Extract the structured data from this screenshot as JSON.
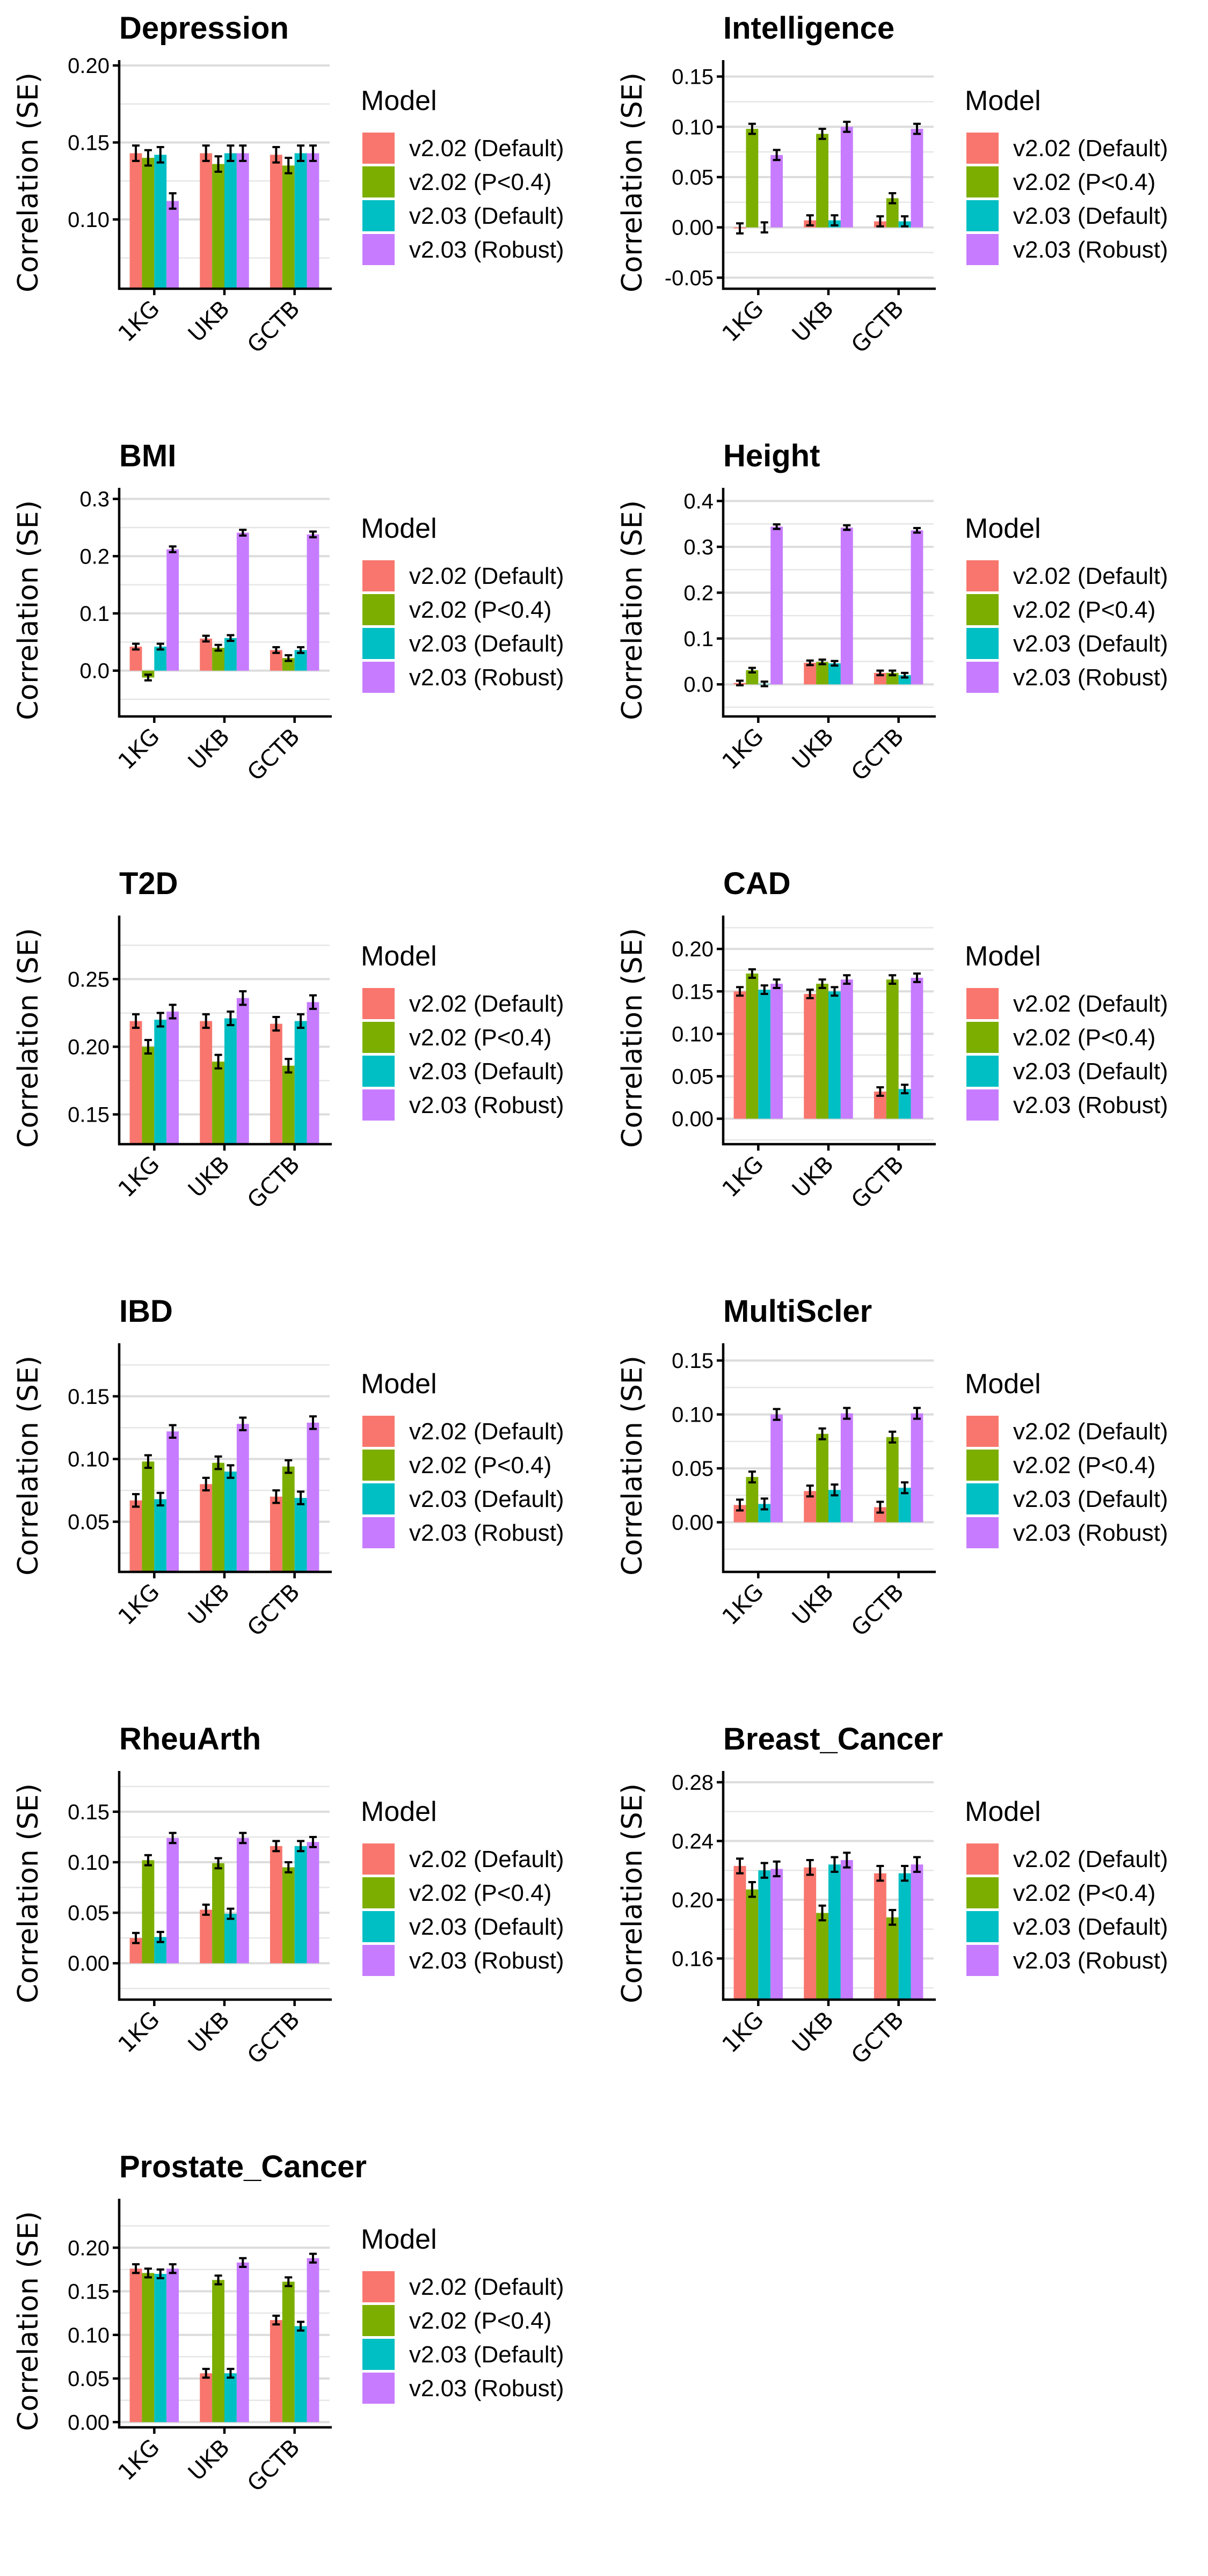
{
  "figure": {
    "legend_title": "Model",
    "ylabel": "Correlation (SE)"
  },
  "chart_data": [
    {
      "type": "bar",
      "title": "Depression",
      "xlabel": "",
      "ylabel": "Correlation (SE)",
      "categories": [
        "1KG",
        "UKB",
        "GCTB"
      ],
      "ylim": [
        0.055,
        0.2
      ],
      "yticks": [
        0.1,
        0.15,
        0.2
      ],
      "ytick_labels": [
        "0.10",
        "0.15",
        "0.20"
      ],
      "minor_ticks": [
        0.075,
        0.125,
        0.175
      ],
      "grid": true,
      "legend_position": "right",
      "series": [
        {
          "name": "v2.02 (Default)",
          "color": "#F8766D",
          "values": [
            0.143,
            0.143,
            0.142
          ],
          "se": [
            0.005,
            0.005,
            0.005
          ]
        },
        {
          "name": "v2.02 (P<0.4)",
          "color": "#7CAE00",
          "values": [
            0.14,
            0.136,
            0.135
          ],
          "se": [
            0.005,
            0.005,
            0.005
          ]
        },
        {
          "name": "v2.03 (Default)",
          "color": "#00BFC4",
          "values": [
            0.142,
            0.143,
            0.143
          ],
          "se": [
            0.005,
            0.005,
            0.005
          ]
        },
        {
          "name": "v2.03 (Robust)",
          "color": "#C77CFF",
          "values": [
            0.112,
            0.143,
            0.143
          ],
          "se": [
            0.005,
            0.005,
            0.005
          ]
        }
      ]
    },
    {
      "type": "bar",
      "title": "Intelligence",
      "xlabel": "",
      "ylabel": "Correlation (SE)",
      "categories": [
        "1KG",
        "UKB",
        "GCTB"
      ],
      "ylim": [
        -0.061,
        0.161
      ],
      "yticks": [
        -0.05,
        0.0,
        0.05,
        0.1,
        0.15
      ],
      "ytick_labels": [
        "-0.05",
        "0.00",
        "0.05",
        "0.10",
        "0.15"
      ],
      "minor_ticks": [
        -0.025,
        0.025,
        0.075,
        0.125
      ],
      "grid": true,
      "legend_position": "right",
      "series": [
        {
          "name": "v2.02 (Default)",
          "color": "#F8766D",
          "values": [
            -0.001,
            0.007,
            0.006
          ],
          "se": [
            0.005,
            0.005,
            0.005
          ]
        },
        {
          "name": "v2.02 (P<0.4)",
          "color": "#7CAE00",
          "values": [
            0.098,
            0.093,
            0.029
          ],
          "se": [
            0.005,
            0.005,
            0.005
          ]
        },
        {
          "name": "v2.03 (Default)",
          "color": "#00BFC4",
          "values": [
            0.0,
            0.007,
            0.006
          ],
          "se": [
            0.005,
            0.005,
            0.005
          ]
        },
        {
          "name": "v2.03 (Robust)",
          "color": "#C77CFF",
          "values": [
            0.072,
            0.1,
            0.098
          ],
          "se": [
            0.005,
            0.005,
            0.005
          ]
        }
      ]
    },
    {
      "type": "bar",
      "title": "BMI",
      "xlabel": "",
      "ylabel": "Correlation (SE)",
      "categories": [
        "1KG",
        "UKB",
        "GCTB"
      ],
      "ylim": [
        -0.08,
        0.31
      ],
      "yticks": [
        0.0,
        0.1,
        0.2,
        0.3
      ],
      "ytick_labels": [
        "0.0",
        "0.1",
        "0.2",
        "0.3"
      ],
      "minor_ticks": [
        -0.05,
        0.05,
        0.15,
        0.25
      ],
      "grid": true,
      "legend_position": "right",
      "series": [
        {
          "name": "v2.02 (Default)",
          "color": "#F8766D",
          "values": [
            0.042,
            0.056,
            0.036
          ],
          "se": [
            0.005,
            0.005,
            0.005
          ]
        },
        {
          "name": "v2.02 (P<0.4)",
          "color": "#7CAE00",
          "values": [
            -0.012,
            0.04,
            0.022
          ],
          "se": [
            0.005,
            0.005,
            0.005
          ]
        },
        {
          "name": "v2.03 (Default)",
          "color": "#00BFC4",
          "values": [
            0.042,
            0.057,
            0.036
          ],
          "se": [
            0.005,
            0.005,
            0.005
          ]
        },
        {
          "name": "v2.03 (Robust)",
          "color": "#C77CFF",
          "values": [
            0.212,
            0.241,
            0.238
          ],
          "se": [
            0.005,
            0.005,
            0.005
          ]
        }
      ]
    },
    {
      "type": "bar",
      "title": "Height",
      "xlabel": "",
      "ylabel": "Correlation (SE)",
      "categories": [
        "1KG",
        "UKB",
        "GCTB"
      ],
      "ylim": [
        -0.07,
        0.417
      ],
      "yticks": [
        0.0,
        0.1,
        0.2,
        0.3,
        0.4
      ],
      "ytick_labels": [
        "0.0",
        "0.1",
        "0.2",
        "0.3",
        "0.4"
      ],
      "minor_ticks": [
        -0.05,
        0.05,
        0.15,
        0.25,
        0.35
      ],
      "grid": true,
      "legend_position": "right",
      "series": [
        {
          "name": "v2.02 (Default)",
          "color": "#F8766D",
          "values": [
            0.003,
            0.047,
            0.025
          ],
          "se": [
            0.005,
            0.005,
            0.005
          ]
        },
        {
          "name": "v2.02 (P<0.4)",
          "color": "#7CAE00",
          "values": [
            0.031,
            0.049,
            0.025
          ],
          "se": [
            0.005,
            0.005,
            0.005
          ]
        },
        {
          "name": "v2.03 (Default)",
          "color": "#00BFC4",
          "values": [
            0.001,
            0.046,
            0.02
          ],
          "se": [
            0.005,
            0.005,
            0.005
          ]
        },
        {
          "name": "v2.03 (Robust)",
          "color": "#C77CFF",
          "values": [
            0.344,
            0.342,
            0.336
          ],
          "se": [
            0.005,
            0.005,
            0.005
          ]
        }
      ]
    },
    {
      "type": "bar",
      "title": "T2D",
      "xlabel": "",
      "ylabel": "Correlation (SE)",
      "categories": [
        "1KG",
        "UKB",
        "GCTB"
      ],
      "ylim": [
        0.128,
        0.293
      ],
      "yticks": [
        0.15,
        0.2,
        0.25
      ],
      "ytick_labels": [
        "0.15",
        "0.20",
        "0.25"
      ],
      "minor_ticks": [
        0.175,
        0.225,
        0.275
      ],
      "grid": true,
      "legend_position": "right",
      "series": [
        {
          "name": "v2.02 (Default)",
          "color": "#F8766D",
          "values": [
            0.219,
            0.219,
            0.217
          ],
          "se": [
            0.005,
            0.005,
            0.005
          ]
        },
        {
          "name": "v2.02 (P<0.4)",
          "color": "#7CAE00",
          "values": [
            0.2,
            0.189,
            0.186
          ],
          "se": [
            0.005,
            0.005,
            0.005
          ]
        },
        {
          "name": "v2.03 (Default)",
          "color": "#00BFC4",
          "values": [
            0.22,
            0.221,
            0.219
          ],
          "se": [
            0.005,
            0.005,
            0.005
          ]
        },
        {
          "name": "v2.03 (Robust)",
          "color": "#C77CFF",
          "values": [
            0.226,
            0.236,
            0.233
          ],
          "se": [
            0.005,
            0.005,
            0.005
          ]
        }
      ]
    },
    {
      "type": "bar",
      "title": "CAD",
      "xlabel": "",
      "ylabel": "Correlation (SE)",
      "categories": [
        "1KG",
        "UKB",
        "GCTB"
      ],
      "ylim": [
        -0.03,
        0.233
      ],
      "yticks": [
        0.0,
        0.05,
        0.1,
        0.15,
        0.2
      ],
      "ytick_labels": [
        "0.00",
        "0.05",
        "0.10",
        "0.15",
        "0.20"
      ],
      "minor_ticks": [
        -0.025,
        0.025,
        0.075,
        0.125,
        0.175,
        0.225
      ],
      "grid": true,
      "legend_position": "right",
      "series": [
        {
          "name": "v2.02 (Default)",
          "color": "#F8766D",
          "values": [
            0.15,
            0.147,
            0.032
          ],
          "se": [
            0.005,
            0.005,
            0.005
          ]
        },
        {
          "name": "v2.02 (P<0.4)",
          "color": "#7CAE00",
          "values": [
            0.171,
            0.159,
            0.164
          ],
          "se": [
            0.005,
            0.005,
            0.005
          ]
        },
        {
          "name": "v2.03 (Default)",
          "color": "#00BFC4",
          "values": [
            0.152,
            0.15,
            0.035
          ],
          "se": [
            0.005,
            0.005,
            0.005
          ]
        },
        {
          "name": "v2.03 (Robust)",
          "color": "#C77CFF",
          "values": [
            0.159,
            0.164,
            0.166
          ],
          "se": [
            0.005,
            0.005,
            0.005
          ]
        }
      ]
    },
    {
      "type": "bar",
      "title": "IBD",
      "xlabel": "",
      "ylabel": "Correlation (SE)",
      "categories": [
        "1KG",
        "UKB",
        "GCTB"
      ],
      "ylim": [
        0.01,
        0.188
      ],
      "yticks": [
        0.05,
        0.1,
        0.15
      ],
      "ytick_labels": [
        "0.05",
        "0.10",
        "0.15"
      ],
      "minor_ticks": [
        0.025,
        0.075,
        0.125,
        0.175
      ],
      "grid": true,
      "legend_position": "right",
      "series": [
        {
          "name": "v2.02 (Default)",
          "color": "#F8766D",
          "values": [
            0.067,
            0.08,
            0.07
          ],
          "se": [
            0.005,
            0.005,
            0.005
          ]
        },
        {
          "name": "v2.02 (P<0.4)",
          "color": "#7CAE00",
          "values": [
            0.098,
            0.097,
            0.094
          ],
          "se": [
            0.005,
            0.005,
            0.005
          ]
        },
        {
          "name": "v2.03 (Default)",
          "color": "#00BFC4",
          "values": [
            0.068,
            0.09,
            0.069
          ],
          "se": [
            0.005,
            0.005,
            0.005
          ]
        },
        {
          "name": "v2.03 (Robust)",
          "color": "#C77CFF",
          "values": [
            0.122,
            0.128,
            0.129
          ],
          "se": [
            0.005,
            0.005,
            0.005
          ]
        }
      ]
    },
    {
      "type": "bar",
      "title": "MultiScler",
      "xlabel": "",
      "ylabel": "Correlation (SE)",
      "categories": [
        "1KG",
        "UKB",
        "GCTB"
      ],
      "ylim": [
        -0.046,
        0.161
      ],
      "yticks": [
        0.0,
        0.05,
        0.1,
        0.15
      ],
      "ytick_labels": [
        "0.00",
        "0.05",
        "0.10",
        "0.15"
      ],
      "minor_ticks": [
        -0.025,
        0.025,
        0.075,
        0.125
      ],
      "grid": true,
      "legend_position": "right",
      "series": [
        {
          "name": "v2.02 (Default)",
          "color": "#F8766D",
          "values": [
            0.016,
            0.029,
            0.014
          ],
          "se": [
            0.005,
            0.005,
            0.005
          ]
        },
        {
          "name": "v2.02 (P<0.4)",
          "color": "#7CAE00",
          "values": [
            0.042,
            0.082,
            0.079
          ],
          "se": [
            0.005,
            0.005,
            0.005
          ]
        },
        {
          "name": "v2.03 (Default)",
          "color": "#00BFC4",
          "values": [
            0.017,
            0.03,
            0.032
          ],
          "se": [
            0.005,
            0.005,
            0.005
          ]
        },
        {
          "name": "v2.03 (Robust)",
          "color": "#C77CFF",
          "values": [
            0.1,
            0.101,
            0.101
          ],
          "se": [
            0.005,
            0.005,
            0.005
          ]
        }
      ]
    },
    {
      "type": "bar",
      "title": "RheuArth",
      "xlabel": "",
      "ylabel": "Correlation (SE)",
      "categories": [
        "1KG",
        "UKB",
        "GCTB"
      ],
      "ylim": [
        -0.036,
        0.185
      ],
      "yticks": [
        0.0,
        0.05,
        0.1,
        0.15
      ],
      "ytick_labels": [
        "0.00",
        "0.05",
        "0.10",
        "0.15"
      ],
      "minor_ticks": [
        -0.025,
        0.025,
        0.075,
        0.125,
        0.175
      ],
      "grid": true,
      "legend_position": "right",
      "series": [
        {
          "name": "v2.02 (Default)",
          "color": "#F8766D",
          "values": [
            0.025,
            0.053,
            0.116
          ],
          "se": [
            0.005,
            0.005,
            0.005
          ]
        },
        {
          "name": "v2.02 (P<0.4)",
          "color": "#7CAE00",
          "values": [
            0.102,
            0.099,
            0.095
          ],
          "se": [
            0.005,
            0.005,
            0.005
          ]
        },
        {
          "name": "v2.03 (Default)",
          "color": "#00BFC4",
          "values": [
            0.026,
            0.049,
            0.116
          ],
          "se": [
            0.005,
            0.005,
            0.005
          ]
        },
        {
          "name": "v2.03 (Robust)",
          "color": "#C77CFF",
          "values": [
            0.124,
            0.124,
            0.12
          ],
          "se": [
            0.005,
            0.005,
            0.005
          ]
        }
      ]
    },
    {
      "type": "bar",
      "title": "Breast_Cancer",
      "xlabel": "",
      "ylabel": "Correlation (SE)",
      "categories": [
        "1KG",
        "UKB",
        "GCTB"
      ],
      "ylim": [
        0.132,
        0.284
      ],
      "yticks": [
        0.16,
        0.2,
        0.24,
        0.28
      ],
      "ytick_labels": [
        "0.16",
        "0.20",
        "0.24",
        "0.28"
      ],
      "minor_ticks": [
        0.14,
        0.18,
        0.22,
        0.26
      ],
      "grid": true,
      "legend_position": "right",
      "series": [
        {
          "name": "v2.02 (Default)",
          "color": "#F8766D",
          "values": [
            0.223,
            0.222,
            0.218
          ],
          "se": [
            0.005,
            0.005,
            0.005
          ]
        },
        {
          "name": "v2.02 (P<0.4)",
          "color": "#7CAE00",
          "values": [
            0.207,
            0.191,
            0.188
          ],
          "se": [
            0.005,
            0.005,
            0.005
          ]
        },
        {
          "name": "v2.03 (Default)",
          "color": "#00BFC4",
          "values": [
            0.22,
            0.224,
            0.218
          ],
          "se": [
            0.005,
            0.005,
            0.005
          ]
        },
        {
          "name": "v2.03 (Robust)",
          "color": "#C77CFF",
          "values": [
            0.221,
            0.227,
            0.224
          ],
          "se": [
            0.005,
            0.005,
            0.005
          ]
        }
      ]
    },
    {
      "type": "bar",
      "title": "Prostate_Cancer",
      "xlabel": "",
      "ylabel": "Correlation (SE)",
      "categories": [
        "1KG",
        "UKB",
        "GCTB"
      ],
      "ylim": [
        -0.006,
        0.25
      ],
      "yticks": [
        0.0,
        0.05,
        0.1,
        0.15,
        0.2
      ],
      "ytick_labels": [
        "0.00",
        "0.05",
        "0.10",
        "0.15",
        "0.20"
      ],
      "minor_ticks": [
        0.025,
        0.075,
        0.125,
        0.175,
        0.225
      ],
      "grid": true,
      "legend_position": "right",
      "series": [
        {
          "name": "v2.02 (Default)",
          "color": "#F8766D",
          "values": [
            0.176,
            0.056,
            0.117
          ],
          "se": [
            0.005,
            0.005,
            0.005
          ]
        },
        {
          "name": "v2.02 (P<0.4)",
          "color": "#7CAE00",
          "values": [
            0.171,
            0.163,
            0.161
          ],
          "se": [
            0.005,
            0.005,
            0.005
          ]
        },
        {
          "name": "v2.03 (Default)",
          "color": "#00BFC4",
          "values": [
            0.17,
            0.056,
            0.11
          ],
          "se": [
            0.005,
            0.005,
            0.005
          ]
        },
        {
          "name": "v2.03 (Robust)",
          "color": "#C77CFF",
          "values": [
            0.176,
            0.183,
            0.188
          ],
          "se": [
            0.005,
            0.005,
            0.005
          ]
        }
      ]
    }
  ]
}
